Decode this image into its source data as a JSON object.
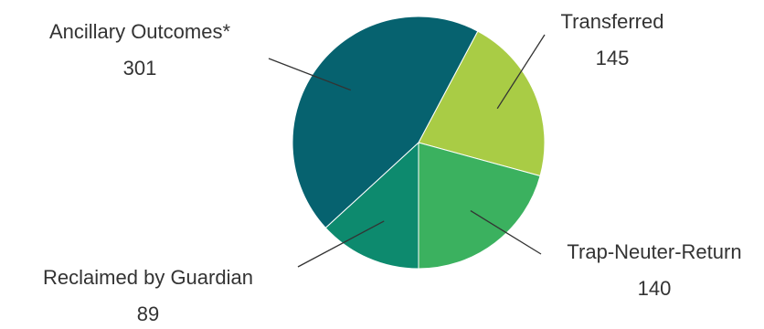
{
  "chart_data": {
    "type": "pie",
    "title": "",
    "slices": [
      {
        "label": "Transferred",
        "value": 145,
        "color": "#a9cc45"
      },
      {
        "label": "Trap-Neuter-Return",
        "value": 140,
        "color": "#3bb15f"
      },
      {
        "label": "Reclaimed by Guardian",
        "value": 89,
        "color": "#0d8a6e"
      },
      {
        "label": "Ancillary Outcomes*",
        "value": 301,
        "color": "#06626f"
      }
    ]
  }
}
